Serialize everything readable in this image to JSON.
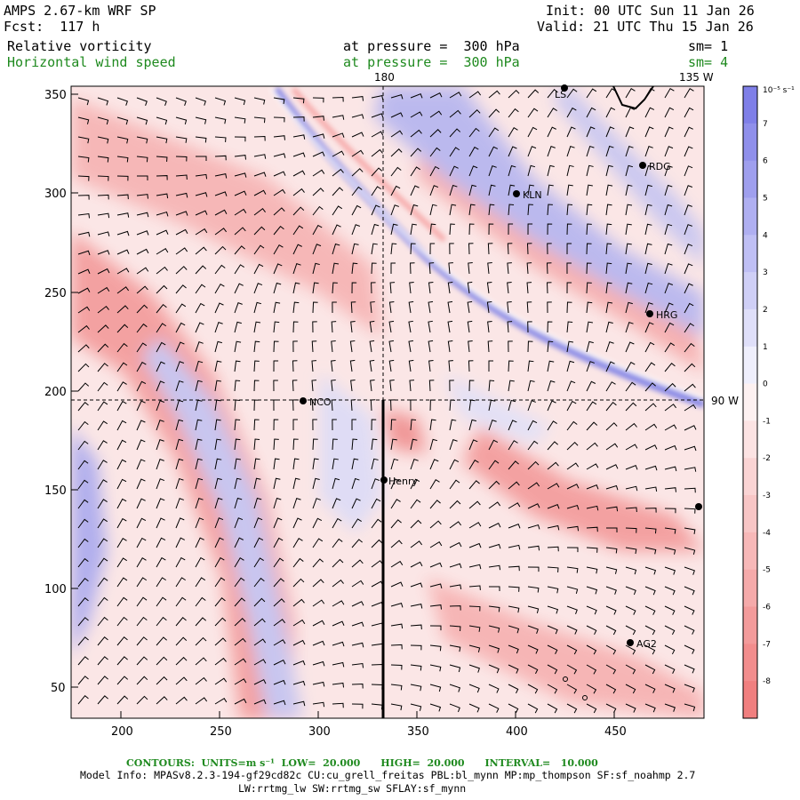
{
  "header": {
    "model": "AMPS 2.67-km WRF SP",
    "fcst": "Fcst:  117 h",
    "init": "Init: 00 UTC Sun 11 Jan 26",
    "valid": "Valid: 21 UTC Thu 15 Jan 26",
    "field1": "Relative vorticity",
    "pressure1": "at pressure =  300 hPa",
    "sm1": "sm= 1",
    "field2": "Horizontal wind speed",
    "pressure2": "at pressure =  300 hPa",
    "sm2": "sm= 4"
  },
  "map": {
    "x_ticks": [
      "200",
      "250",
      "300",
      "350",
      "400",
      "450"
    ],
    "y_ticks": [
      "350",
      "300",
      "250",
      "200",
      "150",
      "100",
      "50"
    ],
    "meridian_180": "180",
    "meridian_135w": "135 W",
    "parallel_90w": "90 W",
    "stations": [
      {
        "name": "NCO"
      },
      {
        "name": "KLN"
      },
      {
        "name": "RDG"
      },
      {
        "name": "HRG"
      },
      {
        "name": "Henry"
      },
      {
        "name": "AG2"
      },
      {
        "name": "LS"
      }
    ]
  },
  "colorbar": {
    "unit": "10⁻⁵ s⁻¹",
    "labels": [
      "7",
      "6",
      "5",
      "4",
      "3",
      "2",
      "1",
      "0",
      "-1",
      "-2",
      "-3",
      "-4",
      "-5",
      "-6",
      "-7",
      "-8"
    ],
    "positive_color": "#7f7fe8",
    "negative_color": "#f07f7f"
  },
  "footer": {
    "contours": "CONTOURS:  UNITS=m s⁻¹  LOW=  20.000      HIGH=  20.000      INTERVAL=   10.000",
    "model_info": "Model Info: MPASv8.2.3-194-gf29cd82c CU:cu_grell_freitas PBL:bl_mynn MP:mp_thompson SF:sf_noahmp 2.7",
    "model_info2": "LW:rrtmg_lw SW:rrtmg_sw SFLAY:sf_mynn"
  }
}
